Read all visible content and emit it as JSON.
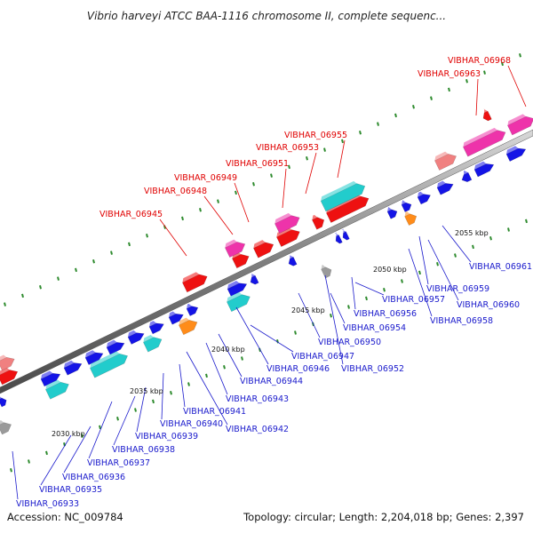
{
  "title": "Vibrio harveyi ATCC BAA-1116 chromosome II, complete sequenc...",
  "footer": {
    "accession": "Accession: NC_009784",
    "summary": "Topology: circular; Length: 2,204,018 bp; Genes: 2,397"
  },
  "colors": {
    "backbone": "#7f7f7f",
    "label_red": "#e00000",
    "label_blue": "#1a1acc",
    "tick": "#2e8b2e",
    "gene_blue": "#1414e6",
    "gene_red": "#ee1111",
    "gene_pink": "#ee33aa",
    "gene_cyan": "#22cccc",
    "gene_orange": "#ff8c1a",
    "gene_salmon": "#f08080",
    "gene_gray": "#9a9a9a"
  },
  "scale_labels": [
    "2030 kbp",
    "2035 kbp",
    "2040 kbp",
    "2045 kbp",
    "2050 kbp",
    "2055 kbp"
  ],
  "genes_top": [
    {
      "label": "VIBHAR_06945"
    },
    {
      "label": "VIBHAR_06948"
    },
    {
      "label": "VIBHAR_06949"
    },
    {
      "label": "VIBHAR_06951"
    },
    {
      "label": "VIBHAR_06953"
    },
    {
      "label": "VIBHAR_06955"
    },
    {
      "label": "VIBHAR_06963"
    },
    {
      "label": "VIBHAR_06968"
    }
  ],
  "genes_bottom": [
    {
      "label": "VIBHAR_06933"
    },
    {
      "label": "VIBHAR_06935"
    },
    {
      "label": "VIBHAR_06936"
    },
    {
      "label": "VIBHAR_06937"
    },
    {
      "label": "VIBHAR_06938"
    },
    {
      "label": "VIBHAR_06939"
    },
    {
      "label": "VIBHAR_06940"
    },
    {
      "label": "VIBHAR_06941"
    },
    {
      "label": "VIBHAR_06942"
    },
    {
      "label": "VIBHAR_06943"
    },
    {
      "label": "VIBHAR_06944"
    },
    {
      "label": "VIBHAR_06946"
    },
    {
      "label": "VIBHAR_06947"
    },
    {
      "label": "VIBHAR_06950"
    },
    {
      "label": "VIBHAR_06952"
    },
    {
      "label": "VIBHAR_06954"
    },
    {
      "label": "VIBHAR_06956"
    },
    {
      "label": "VIBHAR_06957"
    },
    {
      "label": "VIBHAR_06958"
    },
    {
      "label": "VIBHAR_06959"
    },
    {
      "label": "VIBHAR_06960"
    },
    {
      "label": "VIBHAR_06961"
    }
  ]
}
